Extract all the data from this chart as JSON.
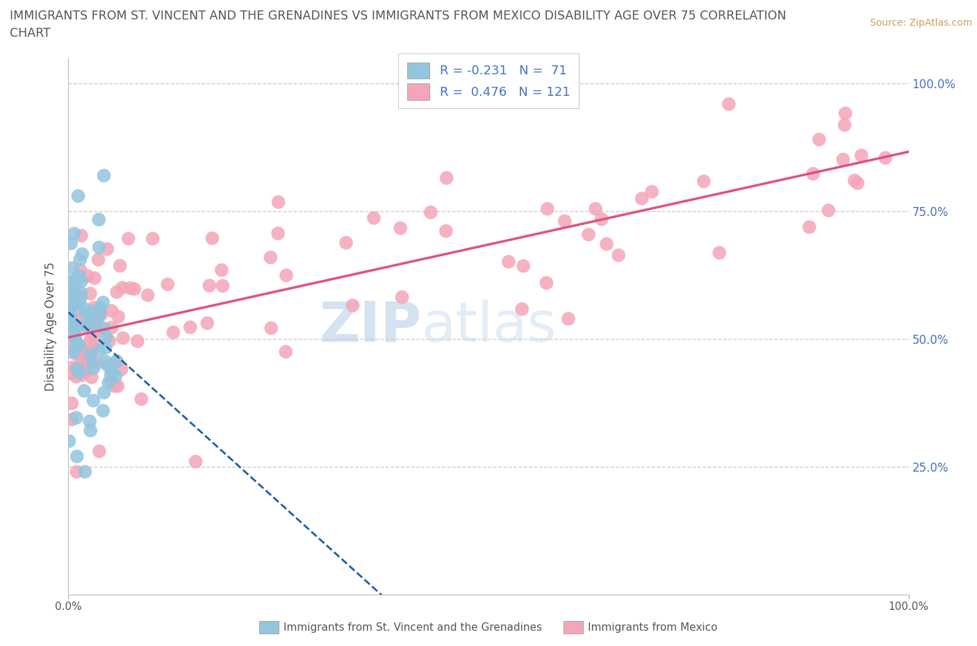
{
  "title_line1": "IMMIGRANTS FROM ST. VINCENT AND THE GRENADINES VS IMMIGRANTS FROM MEXICO DISABILITY AGE OVER 75 CORRELATION",
  "title_line2": "CHART",
  "source_text": "Source: ZipAtlas.com",
  "ylabel": "Disability Age Over 75",
  "right_yticks": [
    "25.0%",
    "50.0%",
    "75.0%",
    "100.0%"
  ],
  "right_ytick_vals": [
    0.25,
    0.5,
    0.75,
    1.0
  ],
  "legend_blue_label": "Immigrants from St. Vincent and the Grenadines",
  "legend_pink_label": "Immigrants from Mexico",
  "R_blue": -0.231,
  "N_blue": 71,
  "R_pink": 0.476,
  "N_pink": 121,
  "blue_color": "#92c5de",
  "pink_color": "#f4a6b8",
  "blue_line_color": "#1a5fa8",
  "pink_line_color": "#e05080",
  "xlim": [
    0.0,
    1.0
  ],
  "ylim": [
    0.0,
    1.05
  ],
  "watermark_zip": "ZIP",
  "watermark_atlas": "atlas",
  "grid_color": "#cccccc",
  "background_color": "#ffffff",
  "legend_text_color": "#4472c4",
  "right_axis_color": "#4472c4",
  "title_color": "#555555",
  "source_color": "#c8a060"
}
